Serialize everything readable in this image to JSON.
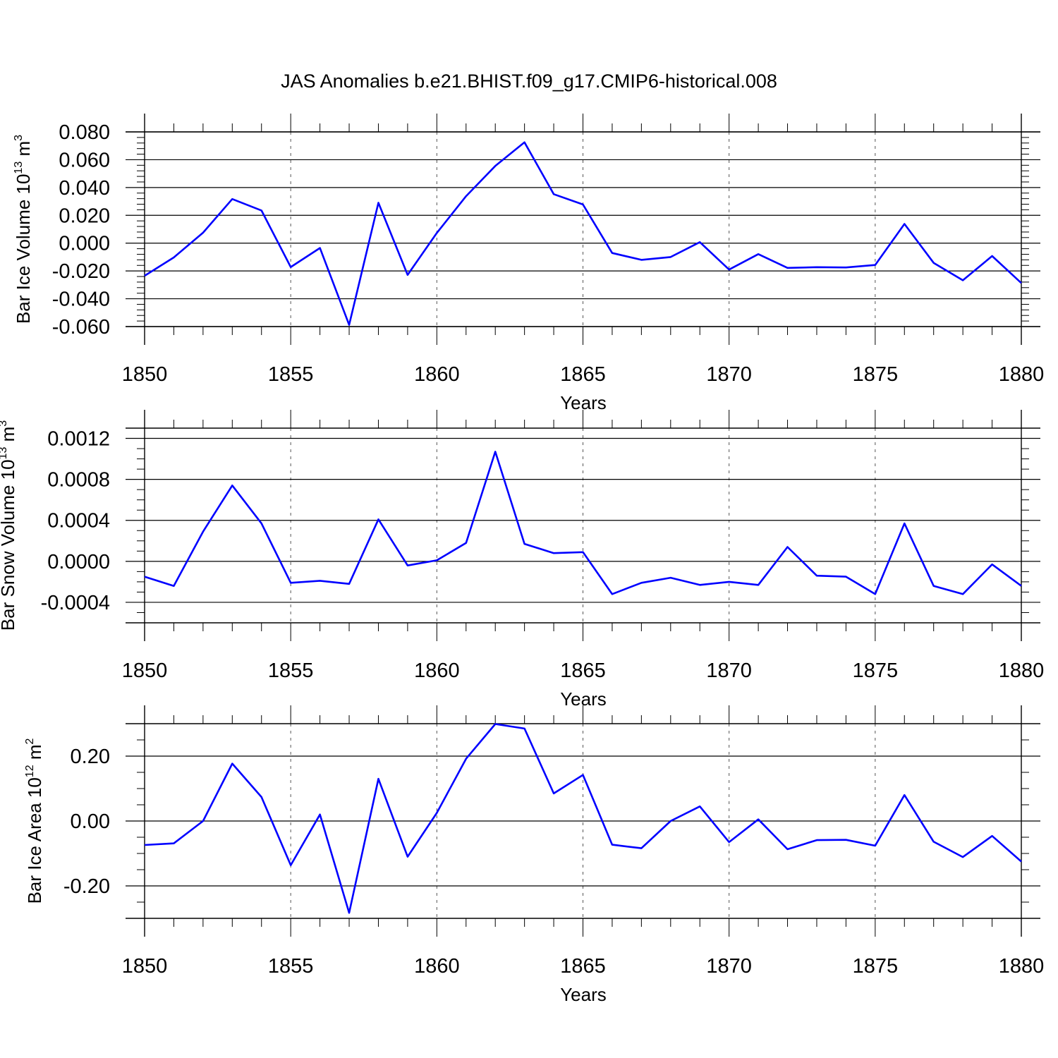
{
  "title": "JAS Anomalies b.e21.BHIST.f09_g17.CMIP6-historical.008",
  "line_color": "#0000ff",
  "chart_data": [
    {
      "type": "line",
      "ylabel": "Bar Ice Volume 10",
      "ylabel_sup": "13",
      "ylabel_unit": "m",
      "ylabel_unit_sup": "3",
      "xlabel": "Years",
      "xlim": [
        1850,
        1880
      ],
      "ylim": [
        -0.06,
        0.08
      ],
      "yticks": [
        -0.06,
        -0.04,
        -0.02,
        0.0,
        0.02,
        0.04,
        0.06,
        0.08
      ],
      "ytick_labels": [
        "-0.060",
        "-0.040",
        "-0.020",
        "0.000",
        "0.020",
        "0.040",
        "0.060",
        "0.080"
      ],
      "yminor_step": 0.004,
      "xticks": [
        1850,
        1855,
        1860,
        1865,
        1870,
        1875,
        1880
      ],
      "xtick_labels": [
        "1850",
        "1855",
        "1860",
        "1865",
        "1870",
        "1875",
        "1880"
      ],
      "grid": "dashed vertical at major x ticks",
      "series": [
        {
          "x": [
            1850,
            1851,
            1852,
            1853,
            1854,
            1855,
            1856,
            1857,
            1858,
            1859,
            1860,
            1861,
            1862,
            1863,
            1864,
            1865,
            1866,
            1867,
            1868,
            1869,
            1870,
            1871,
            1872,
            1873,
            1874,
            1875,
            1876,
            1877,
            1878,
            1879,
            1880
          ],
          "values": [
            -0.0235,
            -0.0103,
            0.0075,
            0.0317,
            0.0235,
            -0.0172,
            -0.0035,
            -0.0588,
            0.029,
            -0.0228,
            0.0073,
            0.0338,
            0.0555,
            0.0725,
            0.0352,
            0.0278,
            -0.0071,
            -0.012,
            -0.01,
            0.0007,
            -0.019,
            -0.0079,
            -0.0178,
            -0.0173,
            -0.0175,
            -0.0157,
            0.0138,
            -0.0142,
            -0.0267,
            -0.0093,
            -0.0287
          ]
        }
      ]
    },
    {
      "type": "line",
      "ylabel": "Bar Snow Volume 10",
      "ylabel_sup": "13",
      "ylabel_unit": "m",
      "ylabel_unit_sup": "3",
      "xlabel": "Years",
      "xlim": [
        1850,
        1880
      ],
      "ylim": [
        -0.0006,
        0.0013
      ],
      "yticks": [
        -0.0004,
        0.0,
        0.0004,
        0.0008,
        0.0012
      ],
      "ytick_labels": [
        "-0.0004",
        "0.0000",
        "0.0004",
        "0.0008",
        "0.0012"
      ],
      "yminor_step": 0.0001,
      "xticks": [
        1850,
        1855,
        1860,
        1865,
        1870,
        1875,
        1880
      ],
      "xtick_labels": [
        "1850",
        "1855",
        "1860",
        "1865",
        "1870",
        "1875",
        "1880"
      ],
      "grid": "dashed vertical at major x ticks",
      "series": [
        {
          "x": [
            1850,
            1851,
            1852,
            1853,
            1854,
            1855,
            1856,
            1857,
            1858,
            1859,
            1860,
            1861,
            1862,
            1863,
            1864,
            1865,
            1866,
            1867,
            1868,
            1869,
            1870,
            1871,
            1872,
            1873,
            1874,
            1875,
            1876,
            1877,
            1878,
            1879,
            1880
          ],
          "values": [
            -0.00015,
            -0.00024,
            0.00029,
            0.00074,
            0.00037,
            -0.00021,
            -0.00019,
            -0.00022,
            0.00041,
            -4e-05,
            1e-05,
            0.00018,
            0.00107,
            0.00017,
            8e-05,
            9e-05,
            -0.00032,
            -0.00021,
            -0.00016,
            -0.00023,
            -0.0002,
            -0.00023,
            0.00014,
            -0.00014,
            -0.00015,
            -0.00032,
            0.00037,
            -0.00024,
            -0.00032,
            -3e-05,
            -0.00024
          ]
        }
      ]
    },
    {
      "type": "line",
      "ylabel": "Bar Ice Area 10",
      "ylabel_sup": "12",
      "ylabel_unit": "m",
      "ylabel_unit_sup": "2",
      "xlabel": "Years",
      "xlim": [
        1850,
        1880
      ],
      "ylim": [
        -0.3,
        0.3
      ],
      "yticks": [
        -0.2,
        0.0,
        0.2
      ],
      "ytick_labels": [
        "-0.20",
        "0.00",
        "0.20"
      ],
      "yminor_step": 0.05,
      "xticks": [
        1850,
        1855,
        1860,
        1865,
        1870,
        1875,
        1880
      ],
      "xtick_labels": [
        "1850",
        "1855",
        "1860",
        "1865",
        "1870",
        "1875",
        "1880"
      ],
      "grid": "dashed vertical at major x ticks",
      "series": [
        {
          "x": [
            1850,
            1851,
            1852,
            1853,
            1854,
            1855,
            1856,
            1857,
            1858,
            1859,
            1860,
            1861,
            1862,
            1863,
            1864,
            1865,
            1866,
            1867,
            1868,
            1869,
            1870,
            1871,
            1872,
            1873,
            1874,
            1875,
            1876,
            1877,
            1878,
            1879,
            1880
          ],
          "values": [
            -0.074,
            -0.069,
            0.0,
            0.177,
            0.074,
            -0.136,
            0.02,
            -0.283,
            0.13,
            -0.11,
            0.025,
            0.192,
            0.299,
            0.285,
            0.085,
            0.142,
            -0.073,
            -0.084,
            0.0,
            0.045,
            -0.065,
            0.005,
            -0.087,
            -0.059,
            -0.058,
            -0.076,
            0.08,
            -0.064,
            -0.111,
            -0.046,
            -0.125
          ]
        }
      ]
    }
  ]
}
